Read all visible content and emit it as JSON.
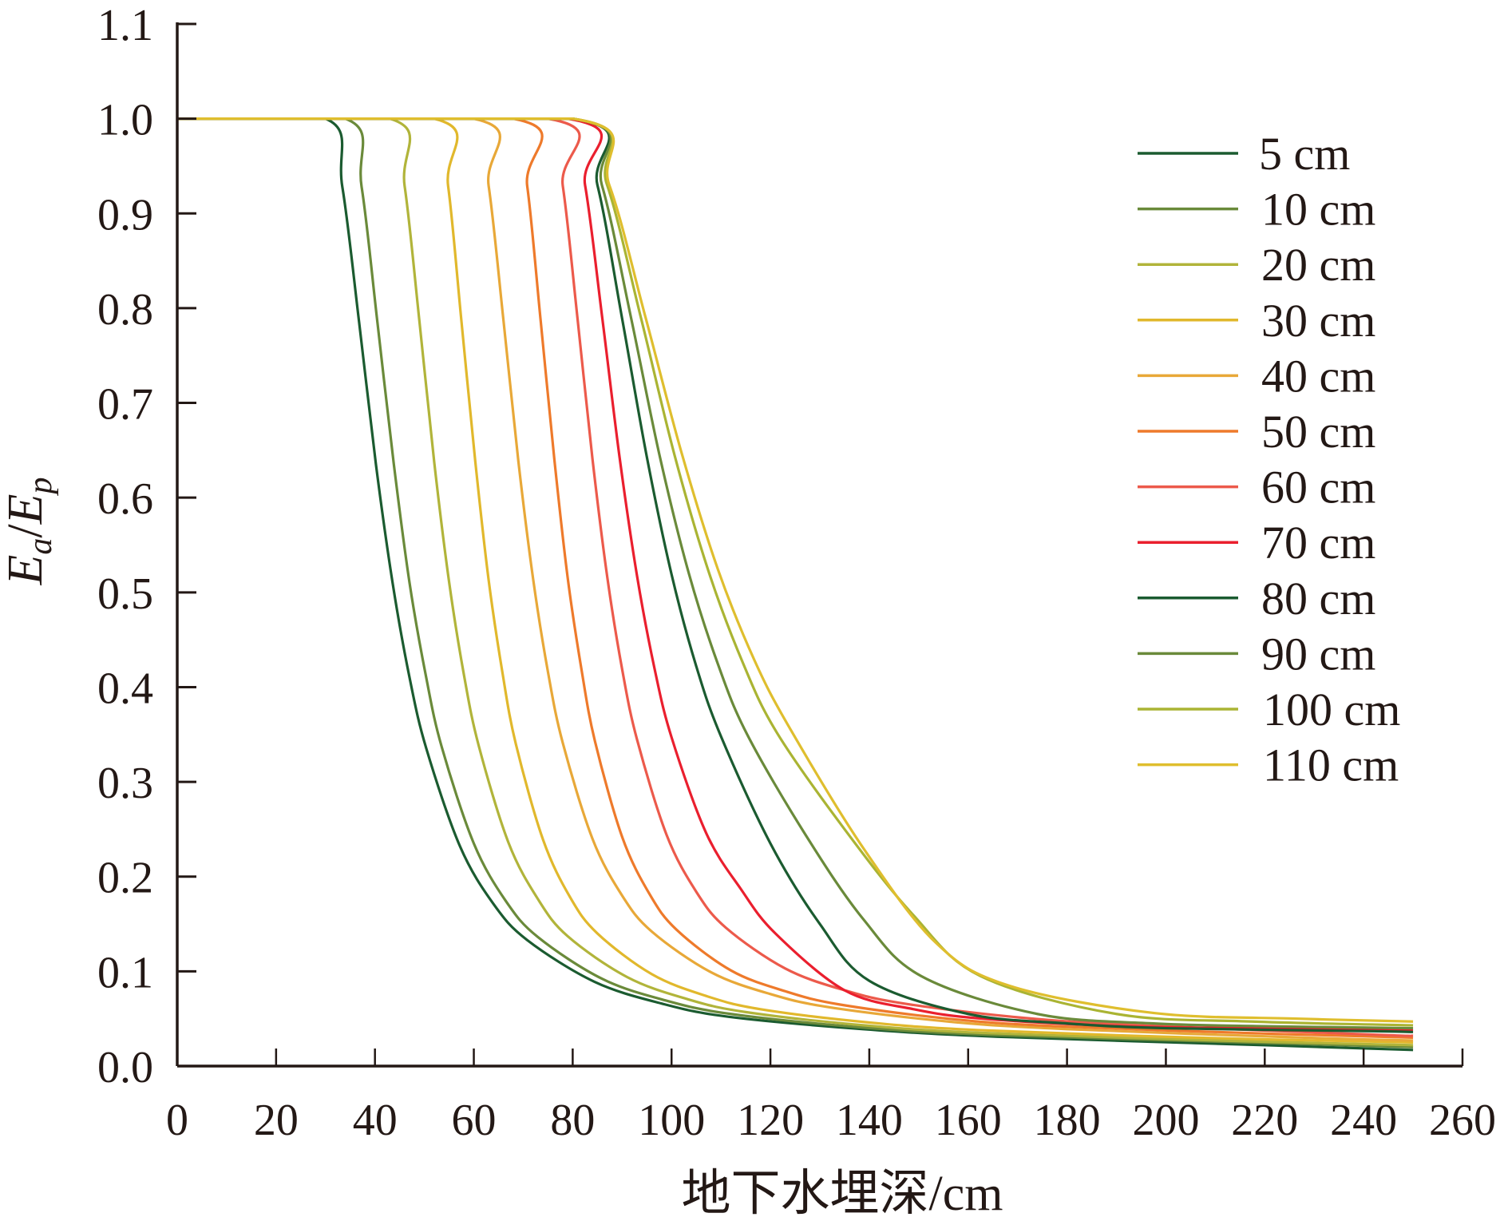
{
  "chart_data": {
    "type": "line",
    "title": "",
    "xlabel": "地下水埋深/cm",
    "ylabel": {
      "main1": "E",
      "sub1": "a",
      "sep": "/",
      "main2": "E",
      "sub2": "p"
    },
    "xlim": [
      0,
      260
    ],
    "ylim": [
      0,
      1.1
    ],
    "xticks": [
      "0",
      "20",
      "40",
      "60",
      "80",
      "100",
      "120",
      "140",
      "160",
      "180",
      "200",
      "220",
      "240",
      "260"
    ],
    "xtick_values": [
      0,
      20,
      40,
      60,
      80,
      100,
      120,
      140,
      160,
      180,
      200,
      220,
      240,
      260
    ],
    "yticks": [
      "0.0",
      "0.1",
      "0.2",
      "0.3",
      "0.4",
      "0.5",
      "0.6",
      "0.7",
      "0.8",
      "0.9",
      "1.0",
      "1.1"
    ],
    "ytick_values": [
      0,
      0.1,
      0.2,
      0.3,
      0.4,
      0.5,
      0.6,
      0.7,
      0.8,
      0.9,
      1.0,
      1.1
    ],
    "grid": false,
    "legend_position": "top-right",
    "series": [
      {
        "name": "5 cm",
        "color": "#1b5b30",
        "x": [
          0,
          30,
          33.4,
          36.8,
          40.2,
          43.6,
          47,
          50.4,
          57.2,
          64,
          70.8,
          84.4,
          98,
          111.6,
          138.8,
          166,
          220.4,
          250
        ],
        "y": [
          1,
          1,
          0.928,
          0.785,
          0.635,
          0.509,
          0.41,
          0.335,
          0.232,
          0.171,
          0.133,
          0.089,
          0.066,
          0.052,
          0.039,
          0.031,
          0.022,
          0.017
        ]
      },
      {
        "name": "10 cm",
        "color": "#6a8a3a",
        "x": [
          0,
          34,
          37.3,
          40.5,
          43.8,
          47,
          50.3,
          53.5,
          60,
          66.5,
          73,
          86,
          99,
          112,
          138,
          164,
          216,
          250
        ],
        "y": [
          1,
          1,
          0.928,
          0.785,
          0.636,
          0.51,
          0.412,
          0.337,
          0.235,
          0.174,
          0.136,
          0.092,
          0.069,
          0.055,
          0.041,
          0.033,
          0.025,
          0.02
        ]
      },
      {
        "name": "20 cm",
        "color": "#b1b43a",
        "x": [
          0,
          43,
          46,
          49,
          52,
          55,
          58,
          61,
          67,
          73,
          79,
          91,
          103,
          115,
          139,
          163,
          211,
          250
        ],
        "y": [
          1,
          1,
          0.929,
          0.786,
          0.637,
          0.511,
          0.413,
          0.338,
          0.236,
          0.176,
          0.137,
          0.094,
          0.071,
          0.057,
          0.043,
          0.035,
          0.027,
          0.022
        ]
      },
      {
        "name": "30 cm",
        "color": "#e1b82c",
        "x": [
          0,
          52,
          54.8,
          57.5,
          60.3,
          63,
          65.8,
          68.5,
          74,
          79.5,
          85,
          96,
          107,
          118,
          140,
          162,
          206,
          250
        ],
        "y": [
          1,
          1,
          0.929,
          0.786,
          0.638,
          0.513,
          0.415,
          0.34,
          0.239,
          0.178,
          0.14,
          0.097,
          0.074,
          0.06,
          0.046,
          0.038,
          0.03,
          0.025
        ]
      },
      {
        "name": "40 cm",
        "color": "#e8a838",
        "x": [
          0,
          60,
          63,
          66,
          69,
          72,
          75,
          78,
          84,
          90,
          96,
          108,
          120,
          132,
          156,
          180,
          228,
          250
        ],
        "y": [
          1,
          1,
          0.929,
          0.787,
          0.639,
          0.514,
          0.416,
          0.341,
          0.24,
          0.18,
          0.142,
          0.099,
          0.076,
          0.062,
          0.047,
          0.039,
          0.03,
          0.027
        ]
      },
      {
        "name": "50 cm",
        "color": "#ee7a2b",
        "x": [
          0,
          68,
          70.8,
          73.5,
          76.3,
          79,
          81.8,
          84.5,
          90,
          95.5,
          101,
          112,
          123,
          134,
          156,
          178,
          222,
          250
        ],
        "y": [
          1,
          1,
          0.929,
          0.788,
          0.64,
          0.515,
          0.418,
          0.343,
          0.242,
          0.182,
          0.144,
          0.101,
          0.079,
          0.065,
          0.05,
          0.042,
          0.034,
          0.03
        ]
      },
      {
        "name": "60 cm",
        "color": "#ec5a4b",
        "x": [
          0,
          75,
          78,
          81,
          84,
          87,
          90,
          93,
          99,
          105,
          111,
          123,
          135,
          147,
          171,
          195,
          243,
          250
        ],
        "y": [
          1,
          1,
          0.929,
          0.788,
          0.641,
          0.516,
          0.419,
          0.345,
          0.244,
          0.184,
          0.146,
          0.103,
          0.08,
          0.066,
          0.051,
          0.043,
          0.033,
          0.032
        ]
      },
      {
        "name": "70 cm",
        "color": "#ea1f2e",
        "x": [
          0,
          79,
          82.5,
          86,
          89.5,
          93,
          96.5,
          100,
          107,
          114,
          121,
          135,
          149,
          163,
          191,
          219,
          250
        ],
        "y": [
          1,
          1,
          0.93,
          0.789,
          0.642,
          0.518,
          0.421,
          0.347,
          0.246,
          0.187,
          0.14,
          0.08,
          0.06,
          0.05,
          0.042,
          0.04,
          0.038
        ]
      },
      {
        "name": "80 cm",
        "color": "#1b5b30",
        "x": [
          0,
          80,
          85,
          90,
          95,
          100,
          105,
          110,
          120,
          130,
          140,
          160,
          180,
          200,
          240,
          250
        ],
        "y": [
          1,
          1,
          0.93,
          0.789,
          0.643,
          0.519,
          0.422,
          0.348,
          0.235,
          0.15,
          0.09,
          0.055,
          0.045,
          0.04,
          0.037,
          0.036
        ]
      },
      {
        "name": "90 cm",
        "color": "#6a8a3a",
        "x": [
          0,
          80,
          85.9,
          91.8,
          97.6,
          103.5,
          109.4,
          115.3,
          127,
          138.8,
          150.5,
          174,
          197.5,
          221,
          250
        ],
        "y": [
          1,
          1,
          0.93,
          0.79,
          0.644,
          0.52,
          0.424,
          0.35,
          0.245,
          0.155,
          0.095,
          0.055,
          0.045,
          0.042,
          0.04
        ]
      },
      {
        "name": "100 cm",
        "color": "#aab433",
        "x": [
          0,
          80,
          86.9,
          93.8,
          100.6,
          107.5,
          114.4,
          121.3,
          135,
          148.8,
          162.5,
          190,
          217.5,
          250
        ],
        "y": [
          1,
          1,
          0.931,
          0.79,
          0.645,
          0.522,
          0.426,
          0.352,
          0.25,
          0.16,
          0.095,
          0.055,
          0.047,
          0.043
        ]
      },
      {
        "name": "110 cm",
        "color": "#dfbe2e",
        "x": [
          0,
          80,
          87.4,
          94.7,
          102.1,
          109.4,
          116.8,
          124.1,
          138.8,
          153.5,
          168.2,
          197.6,
          227,
          250
        ],
        "y": [
          1,
          1,
          0.93,
          0.791,
          0.646,
          0.524,
          0.428,
          0.355,
          0.23,
          0.13,
          0.085,
          0.056,
          0.05,
          0.047
        ]
      }
    ]
  }
}
